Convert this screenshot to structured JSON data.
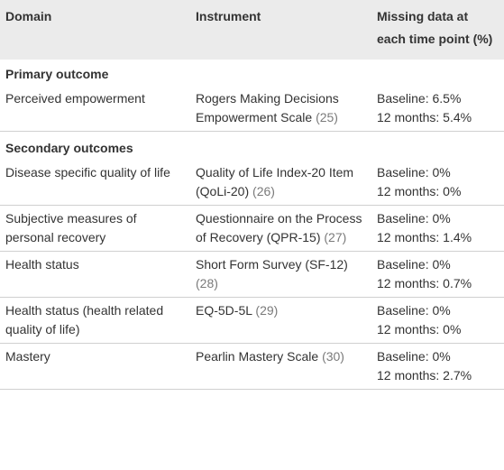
{
  "header": [
    "Domain",
    "Instrument",
    "Missing data at each time point (%)"
  ],
  "sections": [
    {
      "title": "Primary outcome",
      "rows": [
        {
          "domain": "Perceived empowerment",
          "instrument": "Rogers Making Decisions Empowerment Scale",
          "ref": "(25)",
          "missing": [
            "Baseline: 6.5%",
            "12 months: 5.4%"
          ]
        }
      ]
    },
    {
      "title": "Secondary outcomes",
      "rows": [
        {
          "domain": "Disease specific quality of life",
          "instrument": "Quality of Life Index-20 Item (QoLi-20)",
          "ref": "(26)",
          "missing": [
            "Baseline: 0%",
            "12 months: 0%"
          ]
        },
        {
          "domain": "Subjective measures of personal recovery",
          "instrument": "Questionnaire on the Process of Recovery (QPR-15)",
          "ref": "(27)",
          "missing": [
            "Baseline: 0%",
            "12 months: 1.4%"
          ]
        },
        {
          "domain": "Health status",
          "instrument": "Short Form Survey (SF-12)",
          "ref": "(28)",
          "missing": [
            "Baseline: 0%",
            "12 months: 0.7%"
          ]
        },
        {
          "domain": "Health status (health related quality of life)",
          "instrument": "EQ-5D-5L",
          "ref": "(29)",
          "missing": [
            "Baseline: 0%",
            "12 months: 0%"
          ]
        },
        {
          "domain": "Mastery",
          "instrument": "Pearlin Mastery Scale",
          "ref": "(30)",
          "missing": [
            "Baseline: 0%",
            "12 months: 2.7%"
          ]
        }
      ]
    }
  ]
}
